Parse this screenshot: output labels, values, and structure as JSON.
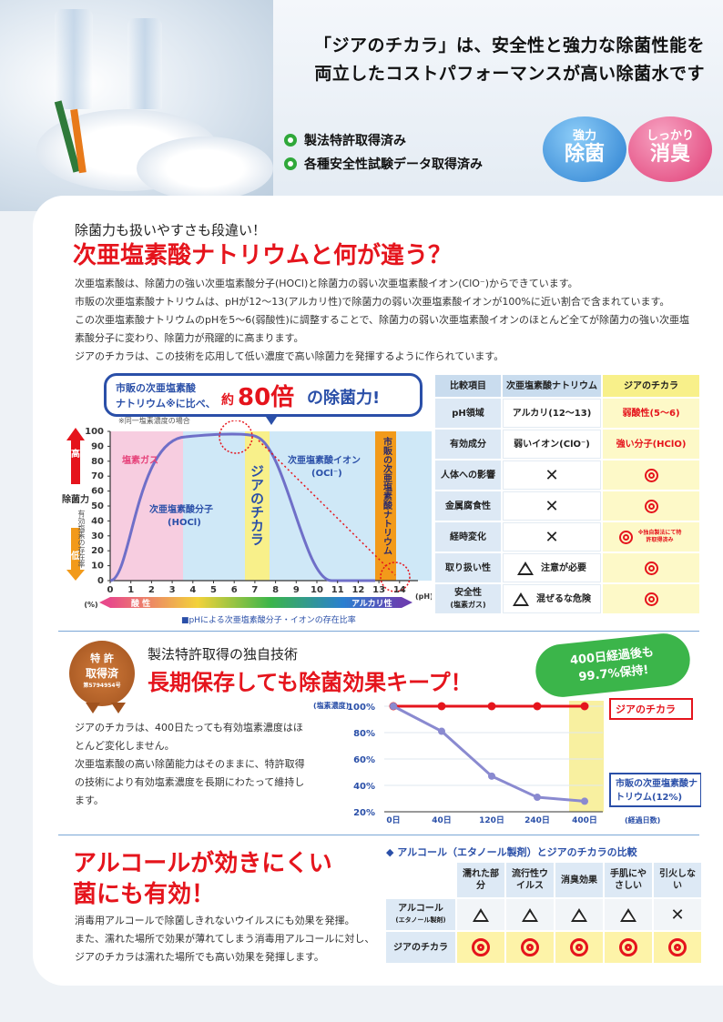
{
  "hero": {
    "headline_line1": "「ジアのチカラ」は、安全性と強力な除菌性能を",
    "headline_line2": "両立したコストパフォーマンスが高い除菌水です",
    "checks": [
      "製法特許取得済み",
      "各種安全性試験データ取得済み"
    ],
    "badges": [
      {
        "small": "強力",
        "big": "除菌",
        "color": "#3a8fd8"
      },
      {
        "small": "しっかり",
        "big": "消臭",
        "color": "#e6427a"
      }
    ]
  },
  "section1": {
    "kicker": "除菌力も扱いやすさも段違い！",
    "title": "次亜塩素酸ナトリウムと何が違う？",
    "paragraphs": [
      "次亜塩素酸は、除菌力の強い次亜塩素酸分子(HOCl)と除菌力の弱い次亜塩素酸イオン(ClO⁻)からできています。",
      "市販の次亜塩素酸ナトリウムは、pHが12〜13(アルカリ性)で除菌力の弱い次亜塩素酸イオンが100%に近い割合で含まれています。",
      "この次亜塩素酸ナトリウムのpHを5〜6(弱酸性)に調整することで、除菌力の弱い次亜塩素酸イオンのほとんど全てが除菌力の強い次亜塩素酸分子に変わり、除菌力が飛躍的に高まります。",
      "ジアのチカラは、この技術を応用して低い濃度で高い除菌力を発揮するように作られています。"
    ]
  },
  "graph": {
    "callout_line1": "市販の次亜塩素酸",
    "callout_line2": "ナトリウム※に比べ、",
    "callout_yaku": "約",
    "callout_num": "80倍",
    "callout_tail": "の除菌力!",
    "note": "※同一塩素濃度の場合",
    "y_ticks": [
      "0",
      "10",
      "20",
      "30",
      "40",
      "50",
      "60",
      "70",
      "80",
      "90",
      "100"
    ],
    "x_ticks": [
      "0",
      "1",
      "2",
      "3",
      "4",
      "5",
      "6",
      "7",
      "8",
      "9",
      "10",
      "11",
      "12",
      "13",
      "14"
    ],
    "x_unit": "(pH)",
    "y_high": "高",
    "y_low": "低",
    "y_label": "除菌力",
    "y_label2": "有効塩素の存在率",
    "y_unit": "(%)",
    "gas_label": "塩素ガス",
    "hocl_label": "次亜塩素酸分子",
    "hocl_formula": "(HOCl)",
    "ocl_label": "次亜塩素酸イオン",
    "ocl_formula": "(OCl⁻)",
    "zia_band": "ジアのチカラ",
    "market_band": "市販の次亜塩素酸ナトリウム",
    "acid": "酸 性",
    "alkali": "アルカリ性",
    "caption": "■pHによる次亜塩素酸分子・イオンの存在比率"
  },
  "compare_table": {
    "headers": [
      "比較項目",
      "次亜塩素酸ナトリウム",
      "ジアのチカラ"
    ],
    "rows": [
      {
        "item": "pH領域",
        "a": "アルカリ(12〜13)",
        "b": "弱酸性(5〜6)"
      },
      {
        "item": "有効成分",
        "a": "弱いイオン(ClO⁻)",
        "b": "強い分子(HClO)"
      },
      {
        "item": "人体への影響",
        "a": "cross",
        "b": "double-circle"
      },
      {
        "item": "金属腐食性",
        "a": "cross",
        "b": "double-circle"
      },
      {
        "item": "経時変化",
        "a": "cross",
        "b": "double-circle",
        "b_note": "※独自製法にて特許取得済み"
      },
      {
        "item": "取り扱い性",
        "a": "triangle",
        "a_text": "注意が必要",
        "b": "double-circle"
      },
      {
        "item": "安全性",
        "item_sub": "(塩素ガス)",
        "a": "triangle",
        "a_text": "混ぜるな危険",
        "b": "double-circle"
      }
    ]
  },
  "section2": {
    "seal_line1": "特 許",
    "seal_line2": "取得済",
    "seal_line3": "第5794954号",
    "kicker": "製法特許取得の独自技術",
    "title": "長期保存しても除菌効果キープ！",
    "burst_line1": "400日経過後も",
    "burst_line2": "99.7%保持!",
    "paragraphs": [
      "ジアのチカラは、400日たっても有効塩素濃度はほとんど変化しません。",
      "次亜塩素酸の高い除菌能力はそのままに、特許取得の技術により有効塩素濃度を長期にわたって維持します。"
    ]
  },
  "chart_data": {
    "type": "line",
    "x": [
      0,
      40,
      120,
      240,
      400
    ],
    "x_tick_labels": [
      "0日",
      "40日",
      "120日",
      "240日",
      "400日"
    ],
    "xlabel": "(経過日数)",
    "ylabel": "(塩素濃度)",
    "y_ticks": [
      100,
      80,
      60,
      40,
      20
    ],
    "y_tick_labels": [
      "100%",
      "80%",
      "60%",
      "40%",
      "20%"
    ],
    "ylim": [
      20,
      100
    ],
    "series": [
      {
        "name": "ジアのチカラ",
        "values": [
          100,
          100,
          100,
          100,
          100
        ],
        "color": "#e5141c"
      },
      {
        "name": "市販の次亜塩素酸ナトリウム(12%)",
        "values": [
          100,
          81,
          47,
          31,
          28
        ],
        "color": "#8a8ad0"
      }
    ]
  },
  "section3": {
    "title_line1": "アルコールが効きにくい",
    "title_line2": "菌にも有効！",
    "paragraphs": [
      "消毒用アルコールで除菌しきれないウイルスにも効果を発揮。",
      "また、濡れた場所で効果が薄れてしまう消毒用アルコールに対し、ジアのチカラは濡れた場所でも高い効果を発揮します。"
    ],
    "table_title": "◆ アルコール（エタノール製剤）とジアのチカラの比較",
    "headers": [
      "濡れた部分",
      "流行性ウイルス",
      "消臭効果",
      "手肌にやさしい",
      "引火しない"
    ],
    "rows": [
      {
        "label": "アルコール",
        "sub": "(エタノール製剤)",
        "values": [
          "triangle",
          "triangle",
          "triangle",
          "triangle",
          "cross"
        ]
      },
      {
        "label": "ジアのチカラ",
        "sub": "",
        "values": [
          "double-circle",
          "double-circle",
          "double-circle",
          "double-circle",
          "double-circle"
        ]
      }
    ]
  }
}
